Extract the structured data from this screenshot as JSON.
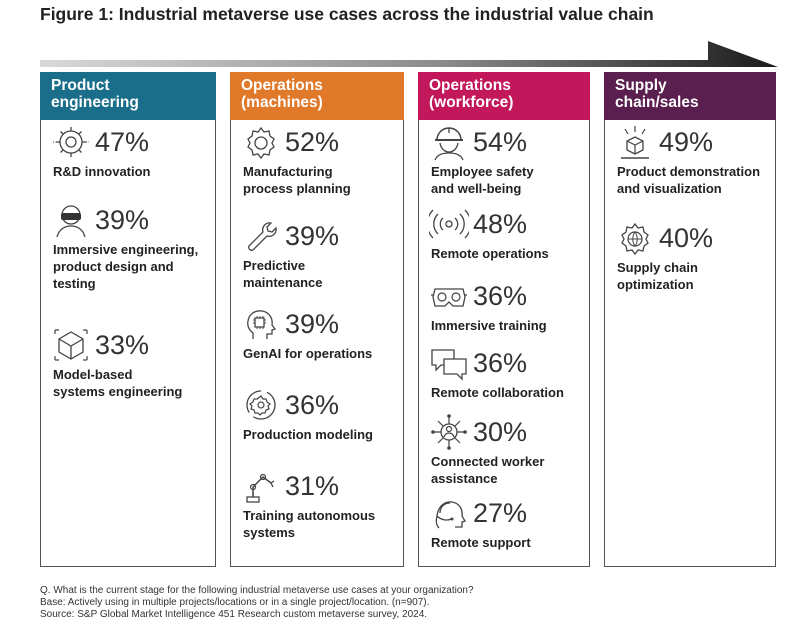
{
  "title": "Figure 1: Industrial metaverse use cases across the industrial value chain",
  "colors": {
    "product_engineering": "#1b6e8a",
    "operations_machines": "#e07a2a",
    "operations_workforce": "#c2185b",
    "supply_chain_sales": "#5a1f4e",
    "arrow_dark": "#1a1a1a",
    "arrow_light": "#d9d9d9",
    "icon_stroke": "#444444"
  },
  "chart_data": {
    "type": "table",
    "title": "Figure 1: Industrial metaverse use cases across the industrial value chain",
    "unit": "%",
    "columns": [
      {
        "header_lines": [
          "Product",
          "engineering"
        ],
        "items": [
          {
            "value": 47,
            "value_text": "47%",
            "label_lines": [
              "R&D innovation"
            ],
            "icon": "gear-circuit-icon"
          },
          {
            "value": 39,
            "value_text": "39%",
            "label_lines": [
              "Immersive engineering,",
              "product design and",
              "testing"
            ],
            "icon": "vr-headset-person-icon"
          },
          {
            "value": 33,
            "value_text": "33%",
            "label_lines": [
              "Model-based",
              "systems engineering"
            ],
            "icon": "cube-model-icon"
          }
        ]
      },
      {
        "header_lines": [
          "Operations",
          "(machines)"
        ],
        "items": [
          {
            "value": 52,
            "value_text": "52%",
            "label_lines": [
              "Manufacturing",
              "process planning"
            ],
            "icon": "gear-icon"
          },
          {
            "value": 39,
            "value_text": "39%",
            "label_lines": [
              "Predictive",
              "maintenance"
            ],
            "icon": "wrench-icon"
          },
          {
            "value": 39,
            "value_text": "39%",
            "label_lines": [
              "GenAI for operations"
            ],
            "icon": "ai-head-chip-icon"
          },
          {
            "value": 36,
            "value_text": "36%",
            "label_lines": [
              "Production modeling"
            ],
            "icon": "gear-cycle-icon"
          },
          {
            "value": 31,
            "value_text": "31%",
            "label_lines": [
              "Training autonomous",
              "systems"
            ],
            "icon": "robot-arm-icon"
          }
        ]
      },
      {
        "header_lines": [
          "Operations",
          "(workforce)"
        ],
        "items": [
          {
            "value": 54,
            "value_text": "54%",
            "label_lines": [
              "Employee safety",
              "and well-being"
            ],
            "icon": "hard-hat-worker-icon"
          },
          {
            "value": 48,
            "value_text": "48%",
            "label_lines": [
              "Remote operations"
            ],
            "icon": "wireless-signal-icon"
          },
          {
            "value": 36,
            "value_text": "36%",
            "label_lines": [
              "Immersive training"
            ],
            "icon": "vr-goggles-icon"
          },
          {
            "value": 36,
            "value_text": "36%",
            "label_lines": [
              "Remote collaboration"
            ],
            "icon": "chat-bubbles-icon"
          },
          {
            "value": 30,
            "value_text": "30%",
            "label_lines": [
              "Connected worker",
              "assistance"
            ],
            "icon": "connected-worker-icon"
          },
          {
            "value": 27,
            "value_text": "27%",
            "label_lines": [
              "Remote support"
            ],
            "icon": "headset-support-icon"
          }
        ]
      },
      {
        "header_lines": [
          "Supply",
          "chain/sales"
        ],
        "items": [
          {
            "value": 49,
            "value_text": "49%",
            "label_lines": [
              "Product demonstration",
              "and visualization"
            ],
            "icon": "hologram-box-icon"
          },
          {
            "value": 40,
            "value_text": "40%",
            "label_lines": [
              "Supply chain",
              "optimization"
            ],
            "icon": "gear-globe-icon"
          }
        ]
      }
    ]
  },
  "footnotes": {
    "question": "Q. What is the current stage for the following industrial metaverse use cases at your organization?",
    "base": "Base: Actively using in multiple projects/locations or in a single project/location. (n=907).",
    "source": "Source: S&P Global Market Intelligence 451 Research custom metaverse survey, 2024."
  }
}
